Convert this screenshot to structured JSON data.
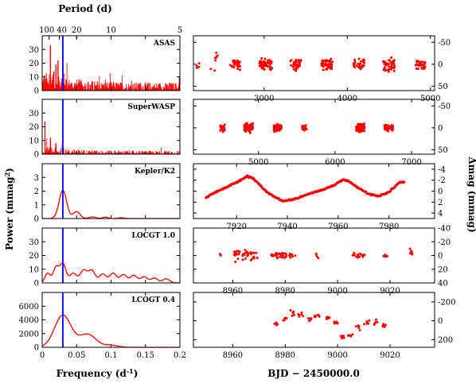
{
  "chart_data": {
    "type": "scatter",
    "left_column": {
      "xlabel": "Frequency (d",
      "xlabel_sup": "-1",
      "xlabel_close": ")",
      "ylabel": "Power (mmag",
      "ylabel_sup": "2",
      "ylabel_close": ")",
      "top_xlabel": "Period (d)",
      "xlim": [
        0,
        0.2
      ],
      "x_ticks": [
        0,
        0.05,
        0.1,
        0.15,
        0.2
      ],
      "x_tick_labels": [
        "0",
        "0.05",
        "0.1",
        "0.15",
        "0.2"
      ],
      "period_ticks": [
        100,
        40,
        20,
        10,
        5
      ],
      "period_tick_labels": [
        "100",
        "40",
        "20",
        "10",
        "5"
      ],
      "marker_frequency": 0.03,
      "marker_color": "#0000ff",
      "line_color": "#ff0000"
    },
    "right_column": {
      "xlabel": "BJD − 2450000.0",
      "ylabel": "Δmag (mmag)",
      "point_color": "#ff0000"
    },
    "panels": [
      {
        "label": "ASAS",
        "power_ylim": [
          0,
          40
        ],
        "power_ticks": [
          0,
          10,
          20,
          30
        ],
        "power_tick_labels": [
          "0",
          "10",
          "20",
          "30"
        ],
        "spectrum_style": "noisy",
        "peaks": [
          {
            "f": 0.012,
            "p": 33
          },
          {
            "f": 0.02,
            "p": 19
          },
          {
            "f": 0.023,
            "p": 22
          },
          {
            "f": 0.03,
            "p": 29
          },
          {
            "f": 0.017,
            "p": 14
          }
        ],
        "noise_level": 6,
        "lc_xlim": [
          2150,
          5050
        ],
        "lc_x_ticks": [
          3000,
          4000,
          5000
        ],
        "lc_x_tick_labels": [
          "3000",
          "4000",
          "5000"
        ],
        "lc_ylim": [
          60,
          -65
        ],
        "lc_y_ticks": [
          -50,
          0,
          50
        ],
        "lc_y_tick_labels": [
          "-50",
          "0",
          "50"
        ],
        "seasons": [
          {
            "center": 2200,
            "width": 40,
            "n": 4,
            "scatter": 15
          },
          {
            "center": 2400,
            "width": 90,
            "n": 8,
            "scatter": 18
          },
          {
            "center": 2650,
            "width": 120,
            "n": 35,
            "scatter": 10
          },
          {
            "center": 3020,
            "width": 150,
            "n": 50,
            "scatter": 12
          },
          {
            "center": 3380,
            "width": 130,
            "n": 40,
            "scatter": 13
          },
          {
            "center": 3760,
            "width": 140,
            "n": 45,
            "scatter": 14
          },
          {
            "center": 4140,
            "width": 130,
            "n": 30,
            "scatter": 12
          },
          {
            "center": 4500,
            "width": 140,
            "n": 45,
            "scatter": 14
          },
          {
            "center": 4880,
            "width": 120,
            "n": 35,
            "scatter": 13
          }
        ]
      },
      {
        "label": "SuperWASP",
        "power_ylim": [
          0,
          40
        ],
        "power_ticks": [
          0,
          10,
          20,
          30
        ],
        "power_tick_labels": [
          "0",
          "10",
          "20",
          "30"
        ],
        "spectrum_style": "noisy",
        "peaks": [
          {
            "f": 0.004,
            "p": 24
          },
          {
            "f": 0.012,
            "p": 12
          },
          {
            "f": 0.02,
            "p": 8
          },
          {
            "f": 0.03,
            "p": 7
          }
        ],
        "noise_level": 2.5,
        "lc_xlim": [
          4150,
          7300
        ],
        "lc_x_ticks": [
          5000,
          6000,
          7000
        ],
        "lc_x_tick_labels": [
          "5000",
          "6000",
          "7000"
        ],
        "lc_ylim": [
          60,
          -65
        ],
        "lc_y_ticks": [
          -50,
          0,
          50
        ],
        "lc_y_tick_labels": [
          "-50",
          "0",
          "50"
        ],
        "seasons": [
          {
            "center": 4530,
            "width": 60,
            "n": 30,
            "scatter": 6
          },
          {
            "center": 4870,
            "width": 110,
            "n": 70,
            "scatter": 8
          },
          {
            "center": 5250,
            "width": 100,
            "n": 70,
            "scatter": 8
          },
          {
            "center": 5600,
            "width": 60,
            "n": 25,
            "scatter": 6
          },
          {
            "center": 6330,
            "width": 110,
            "n": 80,
            "scatter": 10
          },
          {
            "center": 6700,
            "width": 110,
            "n": 60,
            "scatter": 7
          }
        ]
      },
      {
        "label": "Kepler/K2",
        "power_ylim": [
          0,
          4
        ],
        "power_ticks": [
          0,
          1,
          2,
          3
        ],
        "power_tick_labels": [
          "0",
          "1",
          "2",
          "3"
        ],
        "spectrum_style": "smooth",
        "components": [
          {
            "f": 0.03,
            "p": 2.05,
            "w": 0.0055
          },
          {
            "f": 0.05,
            "p": 0.5,
            "w": 0.005
          },
          {
            "f": 0.073,
            "p": 0.12,
            "w": 0.005
          },
          {
            "f": 0.092,
            "p": 0.1,
            "w": 0.004
          },
          {
            "f": 0.115,
            "p": 0.06,
            "w": 0.004
          }
        ],
        "lc_xlim": [
          7903,
          7998
        ],
        "lc_x_ticks": [
          7920,
          7940,
          7960,
          7980
        ],
        "lc_x_tick_labels": [
          "7920",
          "7940",
          "7960",
          "7980"
        ],
        "lc_ylim": [
          5,
          -5
        ],
        "lc_y_ticks": [
          -4,
          -2,
          0,
          2,
          4
        ],
        "lc_y_tick_labels": [
          "-4",
          "-2",
          "0",
          "2",
          "4"
        ],
        "lc_curve": [
          [
            7908,
            1.2
          ],
          [
            7912,
            0.1
          ],
          [
            7916,
            -0.7
          ],
          [
            7920,
            -1.6
          ],
          [
            7924,
            -2.7
          ],
          [
            7926,
            -2.5
          ],
          [
            7928,
            -1.7
          ],
          [
            7932,
            0.2
          ],
          [
            7936,
            1.3
          ],
          [
            7938,
            1.8
          ],
          [
            7942,
            1.6
          ],
          [
            7948,
            0.6
          ],
          [
            7954,
            -0.3
          ],
          [
            7958,
            -1.0
          ],
          [
            7962,
            -2.1
          ],
          [
            7964,
            -1.8
          ],
          [
            7968,
            -0.6
          ],
          [
            7972,
            0.5
          ],
          [
            7976,
            0.9
          ],
          [
            7980,
            0.2
          ],
          [
            7984,
            -1.5
          ],
          [
            7986,
            -1.6
          ]
        ]
      },
      {
        "label": "LOCGT 1.0",
        "power_ylim": [
          0,
          40
        ],
        "power_ticks": [
          0,
          10,
          20,
          30
        ],
        "power_tick_labels": [
          "0",
          "10",
          "20",
          "30"
        ],
        "spectrum_style": "smooth",
        "components": [
          {
            "f": 0.008,
            "p": 7,
            "w": 0.004
          },
          {
            "f": 0.02,
            "p": 11,
            "w": 0.004
          },
          {
            "f": 0.03,
            "p": 14,
            "w": 0.0045
          },
          {
            "f": 0.045,
            "p": 7,
            "w": 0.005
          },
          {
            "f": 0.06,
            "p": 9,
            "w": 0.005
          },
          {
            "f": 0.072,
            "p": 9,
            "w": 0.005
          },
          {
            "f": 0.088,
            "p": 6.5,
            "w": 0.005
          },
          {
            "f": 0.103,
            "p": 7,
            "w": 0.005
          },
          {
            "f": 0.118,
            "p": 6,
            "w": 0.005
          },
          {
            "f": 0.133,
            "p": 5.5,
            "w": 0.005
          },
          {
            "f": 0.148,
            "p": 4.5,
            "w": 0.005
          },
          {
            "f": 0.163,
            "p": 3.5,
            "w": 0.005
          },
          {
            "f": 0.18,
            "p": 3,
            "w": 0.005
          }
        ],
        "lc_xlim": [
          8945,
          9037
        ],
        "lc_x_ticks": [
          8960,
          8980,
          9000,
          9020
        ],
        "lc_x_tick_labels": [
          "8960",
          "8980",
          "9000",
          "9020"
        ],
        "lc_ylim": [
          40,
          -40
        ],
        "lc_y_ticks": [
          -40,
          -20,
          0,
          20,
          40
        ],
        "lc_y_tick_labels": [
          "-40",
          "-20",
          "0",
          "20",
          "40"
        ],
        "seasons": [
          {
            "center": 8955,
            "width": 1,
            "n": 3,
            "scatter": 4
          },
          {
            "center": 8965,
            "width": 9,
            "n": 40,
            "scatter": 7,
            "offset": -1
          },
          {
            "center": 8979,
            "width": 10,
            "n": 35,
            "scatter": 4
          },
          {
            "center": 8992,
            "width": 2,
            "n": 4,
            "scatter": 4
          },
          {
            "center": 9008,
            "width": 5,
            "n": 16,
            "scatter": 4
          },
          {
            "center": 9018,
            "width": 2,
            "n": 5,
            "scatter": 4
          },
          {
            "center": 9028,
            "width": 1,
            "n": 6,
            "scatter": 9,
            "offset": -3
          }
        ]
      },
      {
        "label": "LCOGT 0.4",
        "power_ylim": [
          0,
          8000
        ],
        "power_ticks": [
          0,
          2000,
          4000,
          6000
        ],
        "power_tick_labels": [
          "0",
          "2000",
          "4000",
          "6000"
        ],
        "spectrum_style": "smooth",
        "components": [
          {
            "f": 0.03,
            "p": 4700,
            "w": 0.012
          },
          {
            "f": 0.066,
            "p": 1900,
            "w": 0.012
          },
          {
            "f": 0.1,
            "p": 300,
            "w": 0.01
          }
        ],
        "lc_xlim": [
          8945,
          9037
        ],
        "lc_x_ticks": [
          8960,
          8980,
          9000,
          9020
        ],
        "lc_x_tick_labels": [
          "8960",
          "8980",
          "9000",
          "9020"
        ],
        "lc_ylim": [
          280,
          -300
        ],
        "lc_y_ticks": [
          -200,
          0,
          200
        ],
        "lc_y_tick_labels": [
          "-200",
          "0",
          "200"
        ],
        "lc_dense": [
          [
            8977,
            40
          ],
          [
            8980,
            -20
          ],
          [
            8983,
            -80
          ],
          [
            8986,
            -60
          ],
          [
            8989,
            -20
          ],
          [
            8992,
            -50
          ],
          [
            8996,
            -30
          ],
          [
            8999,
            20
          ],
          [
            9002,
            170
          ],
          [
            9005,
            150
          ],
          [
            9008,
            60
          ],
          [
            9011,
            10
          ],
          [
            9015,
            10
          ],
          [
            9018,
            50
          ]
        ]
      }
    ]
  }
}
